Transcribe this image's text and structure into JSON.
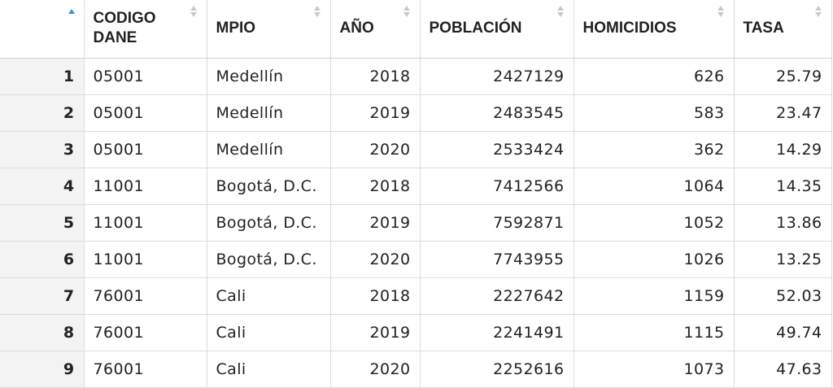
{
  "columns": [
    {
      "key": "rownum",
      "label": ""
    },
    {
      "key": "codigo",
      "label": "CODIGO\nDANE"
    },
    {
      "key": "mpio",
      "label": "MPIO"
    },
    {
      "key": "anio",
      "label": "AÑO"
    },
    {
      "key": "poblacion",
      "label": "POBLACIÓN"
    },
    {
      "key": "homicidios",
      "label": "HOMICIDIOS"
    },
    {
      "key": "tasa",
      "label": "TASA"
    }
  ],
  "header": {
    "codigo_line1": "CODIGO",
    "codigo_line2": "DANE",
    "mpio": "MPIO",
    "anio": "AÑO",
    "poblacion": "POBLACIÓN",
    "homicidios": "HOMICIDIOS",
    "tasa": "TASA"
  },
  "icons": {
    "sort_active": "sort-ascending-icon",
    "sort_inactive": "sort-neutral-icon"
  },
  "colors": {
    "sort_active": "#3d8fe0",
    "sort_inactive": "#c9c9c9",
    "rownum_bg": "#f3f3f3",
    "border": "#dcdcdc"
  },
  "rows": [
    {
      "n": "1",
      "codigo": "05001",
      "mpio": "Medellín",
      "anio": "2018",
      "poblacion": "2427129",
      "homicidios": "626",
      "tasa": "25.79"
    },
    {
      "n": "2",
      "codigo": "05001",
      "mpio": "Medellín",
      "anio": "2019",
      "poblacion": "2483545",
      "homicidios": "583",
      "tasa": "23.47"
    },
    {
      "n": "3",
      "codigo": "05001",
      "mpio": "Medellín",
      "anio": "2020",
      "poblacion": "2533424",
      "homicidios": "362",
      "tasa": "14.29"
    },
    {
      "n": "4",
      "codigo": "11001",
      "mpio": "Bogotá, D.C.",
      "anio": "2018",
      "poblacion": "7412566",
      "homicidios": "1064",
      "tasa": "14.35"
    },
    {
      "n": "5",
      "codigo": "11001",
      "mpio": "Bogotá, D.C.",
      "anio": "2019",
      "poblacion": "7592871",
      "homicidios": "1052",
      "tasa": "13.86"
    },
    {
      "n": "6",
      "codigo": "11001",
      "mpio": "Bogotá, D.C.",
      "anio": "2020",
      "poblacion": "7743955",
      "homicidios": "1026",
      "tasa": "13.25"
    },
    {
      "n": "7",
      "codigo": "76001",
      "mpio": "Cali",
      "anio": "2018",
      "poblacion": "2227642",
      "homicidios": "1159",
      "tasa": "52.03"
    },
    {
      "n": "8",
      "codigo": "76001",
      "mpio": "Cali",
      "anio": "2019",
      "poblacion": "2241491",
      "homicidios": "1115",
      "tasa": "49.74"
    },
    {
      "n": "9",
      "codigo": "76001",
      "mpio": "Cali",
      "anio": "2020",
      "poblacion": "2252616",
      "homicidios": "1073",
      "tasa": "47.63"
    }
  ]
}
